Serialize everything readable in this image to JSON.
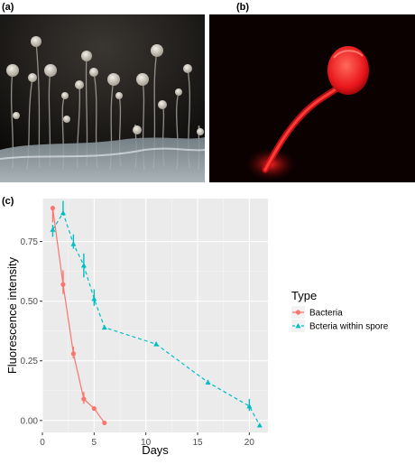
{
  "panels": {
    "a_label": "(a)",
    "b_label": "(b)",
    "c_label": "(c)"
  },
  "colors": {
    "bacteria": "#f8766d",
    "spore": "#00bfc4",
    "panel_bg": "#ebebeb",
    "grid_major": "#ffffff",
    "fluor": "#ff2a2a"
  },
  "chart_data": {
    "type": "line",
    "xlabel": "Days",
    "ylabel": "Fluorescence intensity",
    "xlim": [
      0,
      21.8
    ],
    "ylim": [
      -0.05,
      0.93
    ],
    "xticks": [
      0,
      5,
      10,
      15,
      20
    ],
    "yticks": [
      0.0,
      0.25,
      0.5,
      0.75
    ],
    "ytick_labels": [
      "0.00",
      "0.25",
      "0.50",
      "0.75"
    ],
    "legend_title": "Type",
    "legend_position": "right",
    "grid": true,
    "series": [
      {
        "name": "Bacteria",
        "style": "solid",
        "marker": "circle",
        "x": [
          1,
          2,
          3,
          4,
          5,
          6
        ],
        "y": [
          0.89,
          0.57,
          0.28,
          0.09,
          0.05,
          -0.01
        ],
        "range_low": [
          0.83,
          0.53,
          0.26,
          0.07,
          0.05,
          -0.01
        ],
        "range_high": [
          0.9,
          0.63,
          0.31,
          0.12,
          0.06,
          -0.01
        ]
      },
      {
        "name": "Bcteria within spore",
        "style": "dashed",
        "marker": "triangle",
        "x": [
          1,
          2,
          3,
          4,
          5,
          6,
          11,
          16,
          20,
          21
        ],
        "y": [
          0.8,
          0.87,
          0.74,
          0.65,
          0.51,
          0.39,
          0.32,
          0.16,
          0.06,
          -0.02
        ],
        "range_low": [
          0.77,
          0.86,
          0.72,
          0.6,
          0.48,
          0.39,
          0.32,
          0.15,
          0.04,
          -0.02
        ],
        "range_high": [
          0.82,
          0.92,
          0.78,
          0.7,
          0.55,
          0.39,
          0.33,
          0.17,
          0.09,
          -0.02
        ]
      }
    ]
  }
}
